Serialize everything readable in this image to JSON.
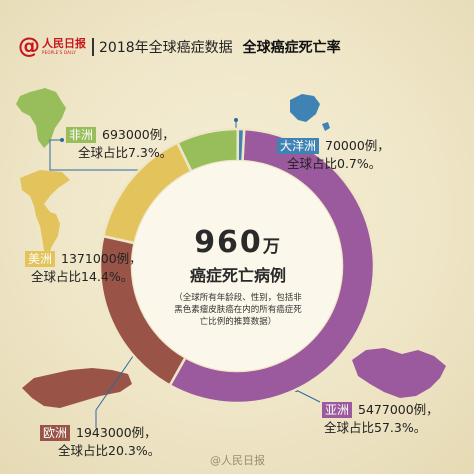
{
  "header": {
    "logo_cn": "人民日报",
    "logo_en": "PEOPLE'S DAILY",
    "title": "2018年全球癌症数据",
    "subtitle": "全球癌症死亡率"
  },
  "center": {
    "total": "960",
    "unit": "万",
    "label": "癌症死亡病例",
    "note": "（全球所有年龄段、性别，包括非黑色素瘤皮肤癌在内的所有癌症死亡比例的推算数据）"
  },
  "colors": {
    "asia": "#9b5a9d",
    "europe": "#9a5447",
    "americas": "#e3c35b",
    "africa": "#98be5c",
    "oceania": "#3f82b4"
  },
  "chart_data": {
    "type": "pie",
    "categories": [
      "亚洲",
      "欧洲",
      "美洲",
      "非洲",
      "大洋洲"
    ],
    "values": [
      5477000,
      1943000,
      1371000,
      693000,
      70000
    ],
    "percents": [
      57.3,
      20.3,
      14.4,
      7.3,
      0.7
    ]
  },
  "labels": {
    "africa": {
      "name": "非洲",
      "count": "693000例，",
      "share": "全球占比7.3%。"
    },
    "oceania": {
      "name": "大洋洲",
      "count": "70000例，",
      "share": "全球占比0.7%。"
    },
    "americas": {
      "name": "美洲",
      "count": "1371000例，",
      "share": "全球占比14.4%。"
    },
    "europe": {
      "name": "欧洲",
      "count": "1943000例，",
      "share": "全球占比20.3%。"
    },
    "asia": {
      "name": "亚洲",
      "count": "5477000例，",
      "share": "全球占比57.3%。"
    }
  },
  "watermark": "@人民日报"
}
